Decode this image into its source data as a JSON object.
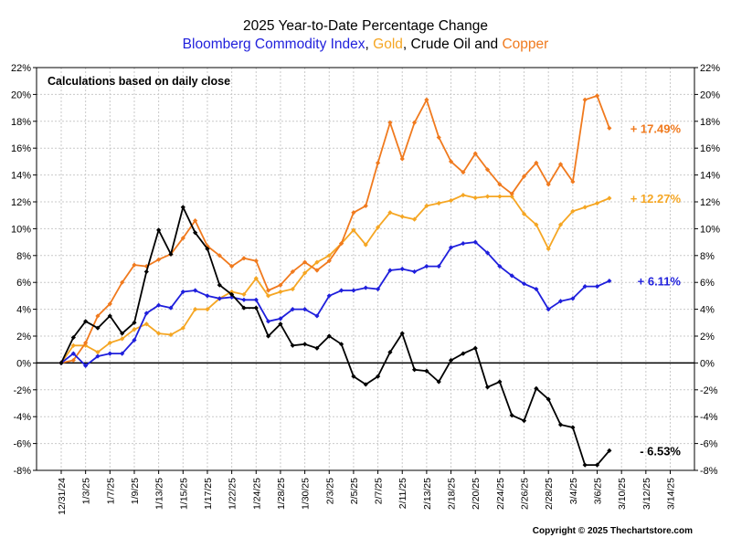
{
  "title": "2025 Year-to-Date Percentage Change",
  "subtitle_parts": [
    {
      "text": "Bloomberg Commodity Index",
      "color": "#1f1fdc"
    },
    {
      "text": ", ",
      "color": "#000000"
    },
    {
      "text": "Gold",
      "color": "#f5a623"
    },
    {
      "text": ", Crude Oil and ",
      "color": "#000000"
    },
    {
      "text": "Copper",
      "color": "#f07a1e"
    }
  ],
  "note": "Calculations based on daily close",
  "copyright": "Copyright © 2025 Thechartstore.com",
  "chart_data": {
    "type": "line",
    "ylim": [
      -8,
      22
    ],
    "yticks": [
      "-8%",
      "-6%",
      "-4%",
      "-2%",
      "0%",
      "2%",
      "4%",
      "6%",
      "8%",
      "10%",
      "12%",
      "14%",
      "16%",
      "18%",
      "20%",
      "22%"
    ],
    "ytick_values": [
      -8,
      -6,
      -4,
      -2,
      0,
      2,
      4,
      6,
      8,
      10,
      12,
      14,
      16,
      18,
      20,
      22
    ],
    "x_tick_labels": [
      "12/31/24",
      "1/3/25",
      "1/7/25",
      "1/9/25",
      "1/13/25",
      "1/15/25",
      "1/17/25",
      "1/22/25",
      "1/24/25",
      "1/28/25",
      "1/30/25",
      "2/3/25",
      "2/5/25",
      "2/7/25",
      "2/11/25",
      "2/13/25",
      "2/18/25",
      "2/20/25",
      "2/24/25",
      "2/26/25",
      "2/28/25",
      "3/4/25",
      "3/6/25",
      "3/10/25",
      "3/12/25",
      "3/14/25"
    ],
    "grid": true,
    "series": [
      {
        "name": "Copper",
        "color": "#f07a1e",
        "end_label": "+ 17.49%",
        "values": [
          0,
          0.2,
          1.5,
          3.5,
          4.4,
          6.0,
          7.3,
          7.2,
          7.7,
          8.1,
          9.3,
          10.6,
          8.7,
          8.0,
          7.2,
          7.8,
          7.6,
          5.4,
          5.8,
          6.8,
          7.5,
          6.9,
          7.6,
          8.9,
          11.2,
          11.7,
          14.9,
          17.9,
          15.2,
          17.9,
          19.6,
          16.8,
          15.0,
          14.2,
          15.6,
          14.4,
          13.3,
          12.6,
          13.9,
          14.9,
          13.3,
          14.8,
          13.5,
          19.6,
          19.9,
          17.49
        ]
      },
      {
        "name": "Gold",
        "color": "#f5a623",
        "end_label": "+ 12.27%",
        "values": [
          0,
          1.3,
          1.3,
          0.8,
          1.5,
          1.8,
          2.5,
          2.9,
          2.2,
          2.1,
          2.6,
          4.0,
          4.0,
          4.8,
          5.3,
          5.1,
          6.3,
          5.0,
          5.3,
          5.5,
          6.7,
          7.5,
          8.0,
          8.9,
          9.9,
          8.8,
          10.1,
          11.2,
          10.9,
          10.7,
          11.7,
          11.9,
          12.1,
          12.5,
          12.3,
          12.4,
          12.4,
          12.4,
          11.1,
          10.3,
          8.5,
          10.3,
          11.3,
          11.6,
          11.9,
          12.27
        ]
      },
      {
        "name": "Bloomberg Commodity Index",
        "color": "#1f1fdc",
        "end_label": "+ 6.11%",
        "values": [
          0,
          0.7,
          -0.2,
          0.5,
          0.7,
          0.7,
          1.7,
          3.7,
          4.3,
          4.1,
          5.3,
          5.4,
          5.0,
          4.8,
          4.9,
          4.7,
          4.7,
          3.1,
          3.3,
          4.0,
          4.0,
          3.5,
          5.0,
          5.4,
          5.4,
          5.6,
          5.5,
          6.9,
          7.0,
          6.8,
          7.2,
          7.2,
          8.6,
          8.9,
          9.0,
          8.2,
          7.2,
          6.5,
          5.9,
          5.5,
          4.0,
          4.6,
          4.8,
          5.7,
          5.7,
          6.11
        ]
      },
      {
        "name": "Crude Oil",
        "color": "#000000",
        "end_label": "- 6.53%",
        "values": [
          0,
          1.9,
          3.1,
          2.6,
          3.5,
          2.2,
          3.0,
          6.8,
          9.9,
          8.1,
          11.6,
          9.7,
          8.5,
          5.8,
          5.1,
          4.1,
          4.1,
          2.0,
          2.9,
          1.3,
          1.4,
          1.1,
          2.0,
          1.4,
          -1.0,
          -1.6,
          -1.0,
          0.8,
          2.2,
          -0.5,
          -0.6,
          -1.4,
          0.2,
          0.7,
          1.1,
          -1.8,
          -1.4,
          -3.9,
          -4.3,
          -1.9,
          -2.7,
          -4.6,
          -4.8,
          -7.6,
          -7.6,
          -6.53
        ]
      }
    ]
  }
}
